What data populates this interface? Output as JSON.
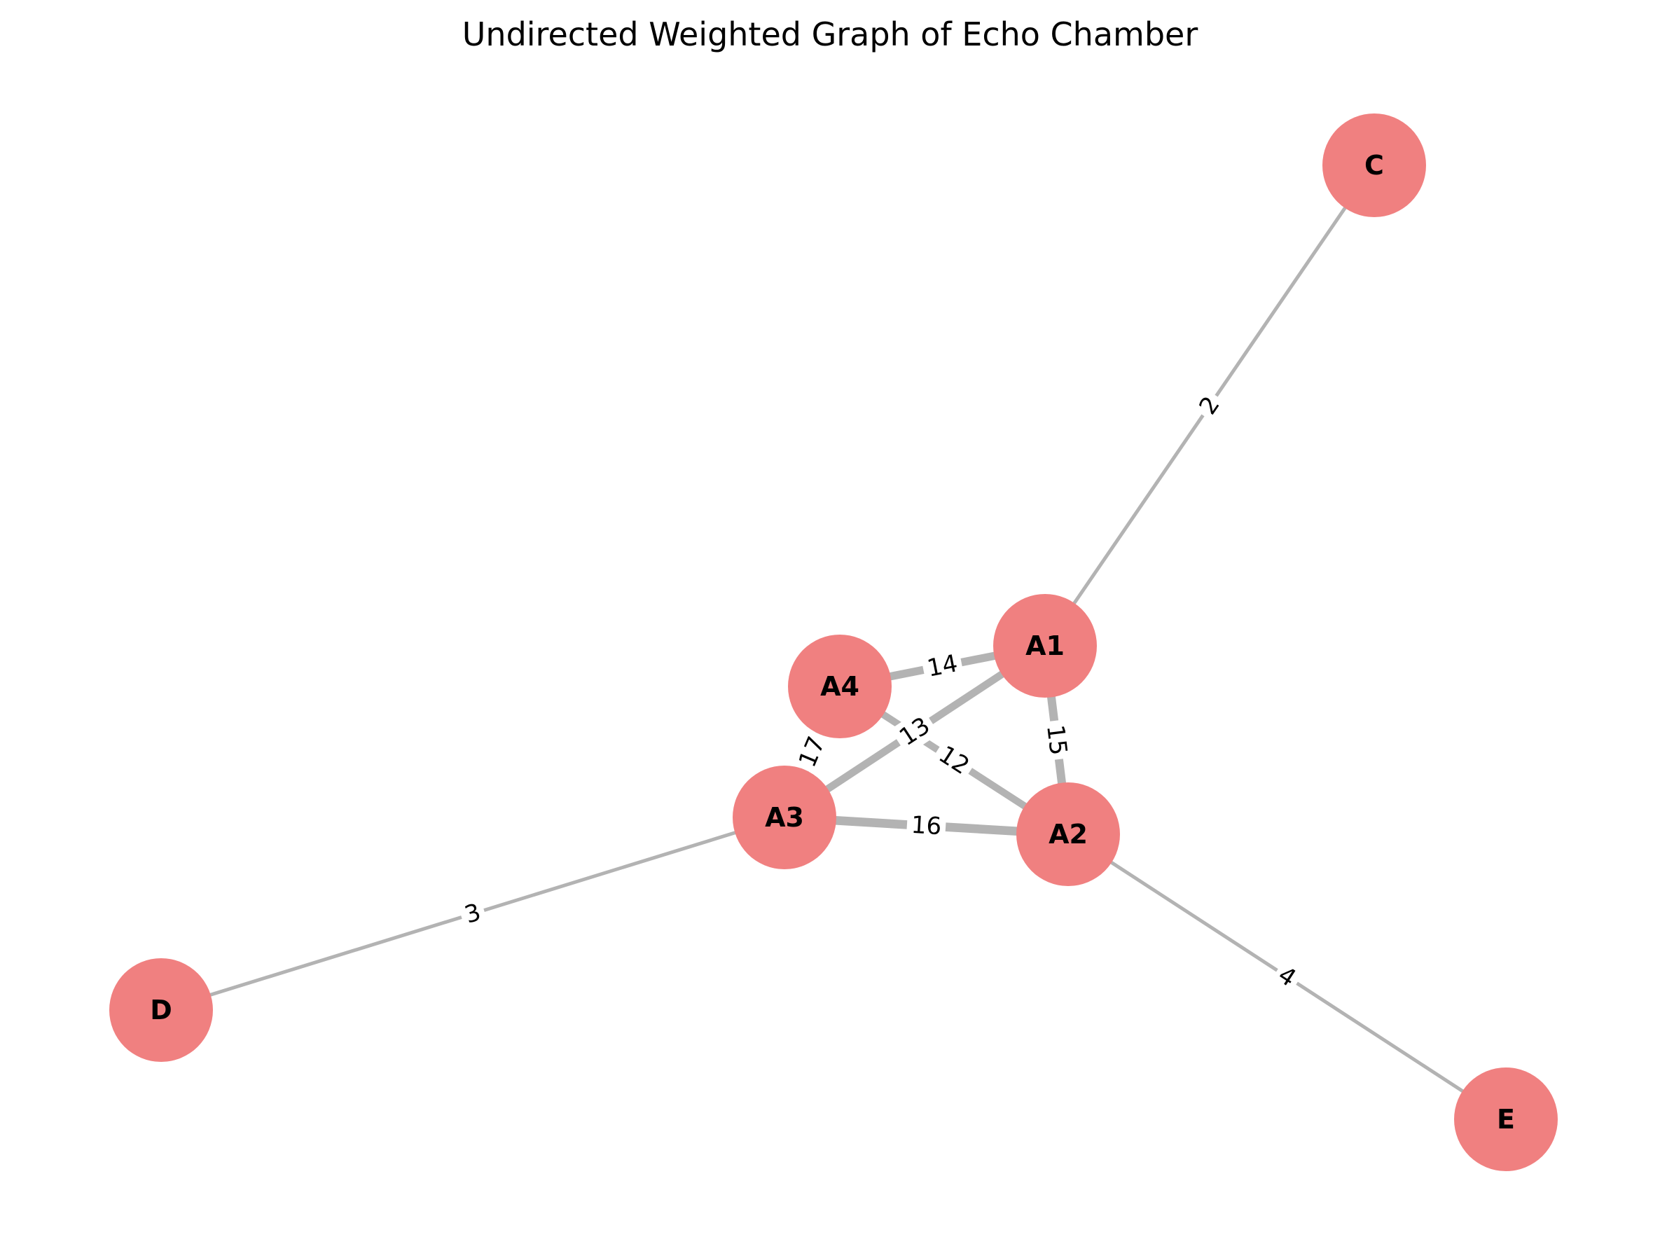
{
  "title": "Undirected Weighted Graph of Echo Chamber",
  "node_color": "#f08080",
  "edge_color": "#b3b3b3",
  "nodes": [
    {
      "id": "A1",
      "label": "A1"
    },
    {
      "id": "A2",
      "label": "A2"
    },
    {
      "id": "A3",
      "label": "A3"
    },
    {
      "id": "A4",
      "label": "A4"
    },
    {
      "id": "C",
      "label": "C"
    },
    {
      "id": "D",
      "label": "D"
    },
    {
      "id": "E",
      "label": "E"
    }
  ],
  "edges": [
    {
      "source": "A1",
      "target": "C",
      "weight": "2"
    },
    {
      "source": "A1",
      "target": "A4",
      "weight": "14"
    },
    {
      "source": "A1",
      "target": "A3",
      "weight": "13"
    },
    {
      "source": "A1",
      "target": "A2",
      "weight": "15"
    },
    {
      "source": "A4",
      "target": "A2",
      "weight": "12"
    },
    {
      "source": "A4",
      "target": "A3",
      "weight": "17"
    },
    {
      "source": "A3",
      "target": "A2",
      "weight": "16"
    },
    {
      "source": "A3",
      "target": "D",
      "weight": "3"
    },
    {
      "source": "A2",
      "target": "E",
      "weight": "4"
    }
  ]
}
